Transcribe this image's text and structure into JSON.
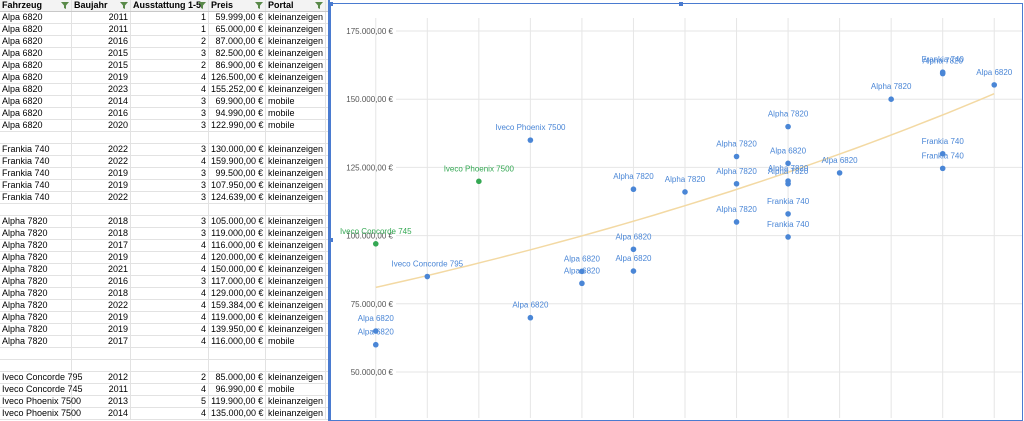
{
  "sheet": {
    "headers": [
      "Fahrzeug",
      "Baujahr",
      "Ausstattung 1-5",
      "Preis",
      "Portal"
    ],
    "rows": [
      [
        "Alpa 6820",
        "2011",
        "1",
        "59.999,00 €",
        "kleinanzeigen"
      ],
      [
        "Alpa 6820",
        "2011",
        "1",
        "65.000,00 €",
        "kleinanzeigen"
      ],
      [
        "Alpa 6820",
        "2016",
        "2",
        "87.000,00 €",
        "kleinanzeigen"
      ],
      [
        "Alpa 6820",
        "2015",
        "3",
        "82.500,00 €",
        "kleinanzeigen"
      ],
      [
        "Alpa 6820",
        "2015",
        "2",
        "86.900,00 €",
        "kleinanzeigen"
      ],
      [
        "Alpa 6820",
        "2019",
        "4",
        "126.500,00 €",
        "kleinanzeigen"
      ],
      [
        "Alpa 6820",
        "2023",
        "4",
        "155.252,00 €",
        "kleinanzeigen"
      ],
      [
        "Alpa 6820",
        "2014",
        "3",
        "69.900,00 €",
        "mobile"
      ],
      [
        "Alpa 6820",
        "2016",
        "3",
        "94.990,00 €",
        "mobile"
      ],
      [
        "Alpa 6820",
        "2020",
        "3",
        "122.990,00 €",
        "mobile"
      ],
      [
        "",
        "",
        "",
        "",
        ""
      ],
      [
        "Frankia 740",
        "2022",
        "3",
        "130.000,00 €",
        "kleinanzeigen"
      ],
      [
        "Frankia 740",
        "2022",
        "4",
        "159.900,00 €",
        "kleinanzeigen"
      ],
      [
        "Frankia 740",
        "2019",
        "3",
        "99.500,00 €",
        "kleinanzeigen"
      ],
      [
        "Frankia 740",
        "2019",
        "3",
        "107.950,00 €",
        "kleinanzeigen"
      ],
      [
        "Frankia 740",
        "2022",
        "3",
        "124.639,00 €",
        "kleinanzeigen"
      ],
      [
        "",
        "",
        "",
        "",
        ""
      ],
      [
        "Alpha 7820",
        "2018",
        "3",
        "105.000,00 €",
        "kleinanzeigen"
      ],
      [
        "Alpha 7820",
        "2018",
        "3",
        "119.000,00 €",
        "kleinanzeigen"
      ],
      [
        "Alpha 7820",
        "2017",
        "4",
        "116.000,00 €",
        "kleinanzeigen"
      ],
      [
        "Alpha 7820",
        "2019",
        "4",
        "120.000,00 €",
        "kleinanzeigen"
      ],
      [
        "Alpha 7820",
        "2021",
        "4",
        "150.000,00 €",
        "kleinanzeigen"
      ],
      [
        "Alpha 7820",
        "2016",
        "3",
        "117.000,00 €",
        "kleinanzeigen"
      ],
      [
        "Alpha 7820",
        "2018",
        "4",
        "129.000,00 €",
        "kleinanzeigen"
      ],
      [
        "Alpha 7820",
        "2022",
        "4",
        "159.384,00 €",
        "kleinanzeigen"
      ],
      [
        "Alpha 7820",
        "2019",
        "4",
        "119.000,00 €",
        "kleinanzeigen"
      ],
      [
        "Alpha 7820",
        "2019",
        "4",
        "139.950,00 €",
        "kleinanzeigen"
      ],
      [
        "Alpha 7820",
        "2017",
        "4",
        "116.000,00 €",
        "mobile"
      ],
      [
        "",
        "",
        "",
        "",
        ""
      ],
      [
        "",
        "",
        "",
        "",
        ""
      ],
      [
        "Iveco Concorde 795",
        "2012",
        "2",
        "85.000,00 €",
        "kleinanzeigen"
      ],
      [
        "Iveco Concorde 745",
        "2011",
        "4",
        "96.990,00 €",
        "mobile"
      ],
      [
        "Iveco Phoenix 7500",
        "2013",
        "5",
        "119.900,00 €",
        "kleinanzeigen"
      ],
      [
        "Iveco Phoenix 7500",
        "2014",
        "4",
        "135.000,00 €",
        "kleinanzeigen"
      ]
    ]
  },
  "chart_data": {
    "type": "scatter",
    "x_axis_labels_visible": false,
    "xlim": [
      2010.5,
      2023.5
    ],
    "ylim": [
      45000,
      180000
    ],
    "y_ticks": [
      {
        "value": 50000,
        "label": "50.000,00 €"
      },
      {
        "value": 75000,
        "label": "75.000,00 €"
      },
      {
        "value": 100000,
        "label": "100.000,00 €"
      },
      {
        "value": 125000,
        "label": "125.000,00 €"
      },
      {
        "value": 150000,
        "label": "150.000,00 €"
      },
      {
        "value": 175000,
        "label": "175.000,00 €"
      }
    ],
    "grid": true,
    "colors": {
      "blue": "#4a86d6",
      "green": "#34a853",
      "trend": "#f3d9a3"
    },
    "points": [
      {
        "x": 2011,
        "y": 59999,
        "label": "Alpa 6820",
        "color": "#4a86d6"
      },
      {
        "x": 2011,
        "y": 65000,
        "label": "Alpa 6820",
        "color": "#4a86d6"
      },
      {
        "x": 2016,
        "y": 87000,
        "label": "Alpa 6820",
        "color": "#4a86d6"
      },
      {
        "x": 2015,
        "y": 82500,
        "label": "Alpa 6820",
        "color": "#4a86d6"
      },
      {
        "x": 2015,
        "y": 86900,
        "label": "Alpa 6820",
        "color": "#4a86d6"
      },
      {
        "x": 2019,
        "y": 126500,
        "label": "Alpa 6820",
        "color": "#4a86d6"
      },
      {
        "x": 2023,
        "y": 155252,
        "label": "Alpa 6820",
        "color": "#4a86d6"
      },
      {
        "x": 2014,
        "y": 69900,
        "label": "Alpa 6820",
        "color": "#4a86d6"
      },
      {
        "x": 2016,
        "y": 94990,
        "label": "Alpa 6820",
        "color": "#4a86d6"
      },
      {
        "x": 2020,
        "y": 122990,
        "label": "Alpa 6820",
        "color": "#4a86d6"
      },
      {
        "x": 2022,
        "y": 130000,
        "label": "Frankia 740",
        "color": "#4a86d6"
      },
      {
        "x": 2022,
        "y": 159900,
        "label": "Frankia 740",
        "color": "#4a86d6"
      },
      {
        "x": 2019,
        "y": 99500,
        "label": "Frankia 740",
        "color": "#4a86d6"
      },
      {
        "x": 2019,
        "y": 107950,
        "label": "Frankia 740",
        "color": "#4a86d6"
      },
      {
        "x": 2022,
        "y": 124639,
        "label": "Frankia 740",
        "color": "#4a86d6"
      },
      {
        "x": 2018,
        "y": 105000,
        "label": "Alpha 7820",
        "color": "#4a86d6"
      },
      {
        "x": 2018,
        "y": 119000,
        "label": "Alpha 7820",
        "color": "#4a86d6"
      },
      {
        "x": 2017,
        "y": 116000,
        "label": "Alpha 7820",
        "color": "#4a86d6"
      },
      {
        "x": 2019,
        "y": 120000,
        "label": "Alpha 7820",
        "color": "#4a86d6"
      },
      {
        "x": 2021,
        "y": 150000,
        "label": "Alpha 7820",
        "color": "#4a86d6"
      },
      {
        "x": 2016,
        "y": 117000,
        "label": "Alpha 7820",
        "color": "#4a86d6"
      },
      {
        "x": 2018,
        "y": 129000,
        "label": "Alpha 7820",
        "color": "#4a86d6"
      },
      {
        "x": 2022,
        "y": 159384,
        "label": "Alpha 7820",
        "color": "#4a86d6"
      },
      {
        "x": 2019,
        "y": 119000,
        "label": "Alpha 7820",
        "color": "#4a86d6"
      },
      {
        "x": 2019,
        "y": 139950,
        "label": "Alpha 7820",
        "color": "#4a86d6"
      },
      {
        "x": 2012,
        "y": 85000,
        "label": "Iveco Concorde 795",
        "color": "#4a86d6"
      },
      {
        "x": 2011,
        "y": 96990,
        "label": "Iveco Concorde 745",
        "color": "#34a853"
      },
      {
        "x": 2013,
        "y": 119900,
        "label": "Iveco Phoenix 7500",
        "color": "#34a853"
      },
      {
        "x": 2014,
        "y": 135000,
        "label": "Iveco Phoenix 7500",
        "color": "#4a86d6"
      }
    ],
    "trendline": {
      "type": "exponential",
      "x": [
        2011,
        2023
      ],
      "y": [
        81000,
        152000
      ]
    }
  }
}
